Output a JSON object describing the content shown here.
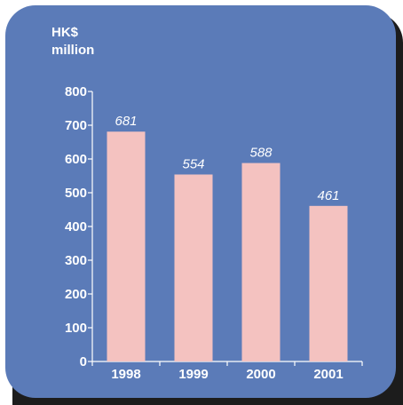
{
  "colors": {
    "background": "#5b7bb8",
    "bar": "#f4c2c0",
    "axis": "#ffffff",
    "text": "#ffffff",
    "shadow": "#1c1c1c"
  },
  "chart_data": {
    "type": "bar",
    "title": "",
    "xlabel": "",
    "ylabel": "HK$ million",
    "ylabel_lines": [
      "HK$",
      "million"
    ],
    "categories": [
      "1998",
      "1999",
      "2000",
      "2001"
    ],
    "values": [
      681,
      554,
      588,
      461
    ],
    "data_labels": [
      "681",
      "554",
      "588",
      "461"
    ],
    "ylim": [
      0,
      800
    ],
    "yticks": [
      0,
      100,
      200,
      300,
      400,
      500,
      600,
      700,
      800
    ],
    "grid": false,
    "legend": "none"
  }
}
